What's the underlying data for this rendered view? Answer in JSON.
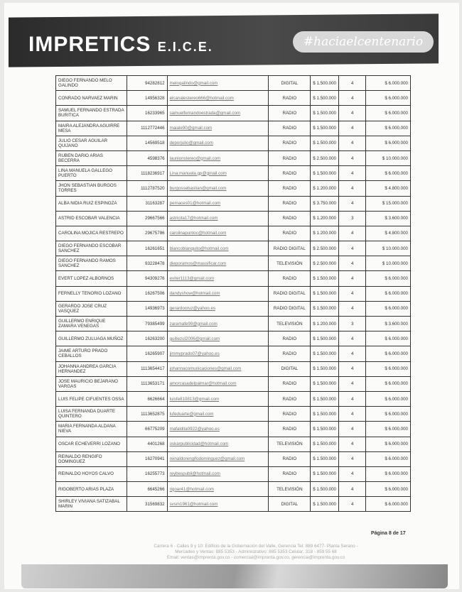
{
  "header": {
    "logo": "IMPRETICS",
    "logo_suffix": "E.I.C.E.",
    "hashtag": "#haciaelcentenario"
  },
  "rows": [
    [
      "DIEGO FERNANDO MELO GALINDO",
      "94282812",
      "melogalindo@gmail.com",
      "DIGITAL",
      "$ 1.500.000",
      "4",
      "$ 6.000.000"
    ],
    [
      "CONRADO NARVAEZ MARIN",
      "14956328",
      "elcanalestereo666@hotmail.com",
      "RADIO",
      "$ 1.500.000",
      "4",
      "$ 6.000.000"
    ],
    [
      "SAMUEL FERNANDO ESTRADA BURITICA",
      "16233965",
      "samuelfernandoestrada@gmail.com",
      "RADIO",
      "$ 1.500.000",
      "4",
      "$ 6.000.000"
    ],
    [
      "MAIRA ALEJANDRA AGUIRRE MESA",
      "1112772446",
      "maiale90@gmail.com",
      "RADIO",
      "$ 1.500.000",
      "4",
      "$ 6.000.000"
    ],
    [
      "JULIO CESAR AGUILAR QUIJANO",
      "14569518",
      "deporjulio@gmail.com",
      "RADIO",
      "$ 1.500.000",
      "4",
      "$ 6.000.000"
    ],
    [
      "RUBEN DARIO ARIAS BECERRA",
      "4598376",
      "launionstereo@gmail.com",
      "RADIO",
      "$ 2.500.000",
      "4",
      "$ 10.000.000"
    ],
    [
      "LINA MANUELA GALLEGO PUERTO",
      "1118236917",
      "Lina.manuela.gp@gmail.com",
      "RADIO",
      "$ 1.500.000",
      "4",
      "$ 6.000.000"
    ],
    [
      "JHON SEBASTIAN BURGOS TORRES",
      "1112787520",
      "burgossebastian@gmail.com",
      "RADIO",
      "$ 1.200.000",
      "4",
      "$ 4.800.000"
    ],
    [
      "ALBA NIDIA RUIZ ESPINOZA",
      "31163287",
      "pemaces01@hotmail.com",
      "RADIO",
      "$ 3.750.000",
      "4",
      "$ 15.000.000"
    ],
    [
      "ASTRID ESCOBAR VALENCIA",
      "29667566",
      "astricita17@hotmail.com",
      "RADIO",
      "$ 1.200.000",
      "3",
      "$ 3.600.000"
    ],
    [
      "CAROLINA MOJICA RESTREPO",
      "29675786",
      "carolinapuntoc@hotmail.com",
      "RADIO",
      "$ 1.200.000",
      "4",
      "$ 4.800.000"
    ],
    [
      "DIEGO FERNANDO ESCOBAR SANCHEZ",
      "16261651",
      "blancoblanquito@hotmail.com",
      "RADIO DIGITAL",
      "$ 2.500.000",
      "4",
      "$ 10.000.000"
    ],
    [
      "DIEGO FERNANDO RAMOS SANCHEZ",
      "93228478",
      "dieporamos@massificar.com",
      "TELEVISIÓN",
      "$ 2.500.000",
      "4",
      "$ 10.000.000"
    ],
    [
      "EVERT LOPEZ ALBORNOS",
      "94309276",
      "eviter1113@gmail.com",
      "RADIO",
      "$ 1.500.000",
      "4",
      "$ 6.000.000"
    ],
    [
      "FERNELLY TENORIO LOZANO",
      "16267506",
      "dandyshow@hotmail.com",
      "RADIO DIGITAL",
      "$ 1.500.000",
      "4",
      "$ 6.000.000"
    ],
    [
      "GERARDO JOSE CRUZ VASQUEZ",
      "14936973",
      "gerardocruz@yahoo.es",
      "RADIO DIGITAL",
      "$ 1.500.000",
      "4",
      "$ 6.000.000"
    ],
    [
      "GUILLERMO ENRIQUE ZAMARA VENEGAS",
      "79385499",
      "zaramafe99@gmail.com",
      "TELEVISIÓN",
      "$ 1.200.000",
      "3",
      "$ 3.600.000"
    ],
    [
      "GUILLERMO ZULUAGA MUÑOZ",
      "16263200",
      "guillezul2006@gmail.com",
      "RADIO",
      "$ 1.500.000",
      "4",
      "$ 6.000.000"
    ],
    [
      "JAIME ARTURO PRADO CEBALLOS",
      "16265907",
      "jimmyprado07@yahoo.es",
      "RADIO",
      "$ 1.500.000",
      "4",
      "$ 6.000.000"
    ],
    [
      "JOHANNA ANDREA GARCIA HERNANDEZ",
      "1113654417",
      "johannacomunicaciones@gmail.com",
      "DIGITAL",
      "$ 1.500.000",
      "4",
      "$ 6.000.000"
    ],
    [
      "JOSE MAURICIO BEJARANO VARGAS",
      "1113653171",
      "amorcasadelpalmar@hotmail.com",
      "RADIO",
      "$ 1.500.000",
      "4",
      "$ 6.000.000"
    ],
    [
      "LUIS FELIPE CIFUENTES OSSA",
      "6626664",
      "luisfe810813@gmail.com",
      "RADIO",
      "$ 1.500.000",
      "4",
      "$ 6.000.000"
    ],
    [
      "LUISA FERNANDA DUARTE QUINTERO",
      "1113652875",
      "lufeduarte@gmail.com",
      "RADIO",
      "$ 1.500.000",
      "4",
      "$ 6.000.000"
    ],
    [
      "MARIA FERNANDA ALDANA NIEVA",
      "66775209",
      "mafaldita0922@yahoo.es",
      "RADIO",
      "$ 1.500.000",
      "4",
      "$ 6.000.000"
    ],
    [
      "OSCAR ECHEVERRI LOZANO",
      "4401268",
      "oskarpublicidad@hotmail.com",
      "TELEVISIÓN",
      "$ 1.500.000",
      "4",
      "$ 6.000.000"
    ],
    [
      "REINALDO RENGIFO DOMINGUEZ",
      "16270941",
      "reinaldorengifodominguez@gmail.com",
      "RADIO",
      "$ 1.500.000",
      "4",
      "$ 6.000.000"
    ],
    [
      "REINALDO HOYOS CALVO",
      "16255773",
      "reybespubli@hotmail.com",
      "RADIO",
      "$ 1.500.000",
      "4",
      "$ 6.000.000"
    ],
    [
      "RIGOBERTO ARIAS PLAZA",
      "6645266",
      "rigoar41@hotmail.com",
      "TELEVISIÓN",
      "$ 1.500.000",
      "4",
      "$ 6.000.000"
    ],
    [
      "SHIRLEY VIVIANA SATIZABAL MARIN",
      "31569832",
      "svsm1961@hotmail.com",
      "DIGITAL",
      "$ 1.500.000",
      "4",
      "$ 6.000.000"
    ]
  ],
  "footer": {
    "page": "Página 8 de 17",
    "line1": "Carrera 6 - Calles 9 y 10: Edificio de la Gobernación del Valle, Gerencia Tel: 889 6477- Planta Serano -",
    "line2": "Mercadeo y Ventas: 885 5353 - Administrativo: 885 5353 Celular: 318 - 859 55 68",
    "line3": "Email: ventas@imprenta.gov.co - comercial@imprenta.gov.co, gerencia@imprenta.gov.co"
  }
}
